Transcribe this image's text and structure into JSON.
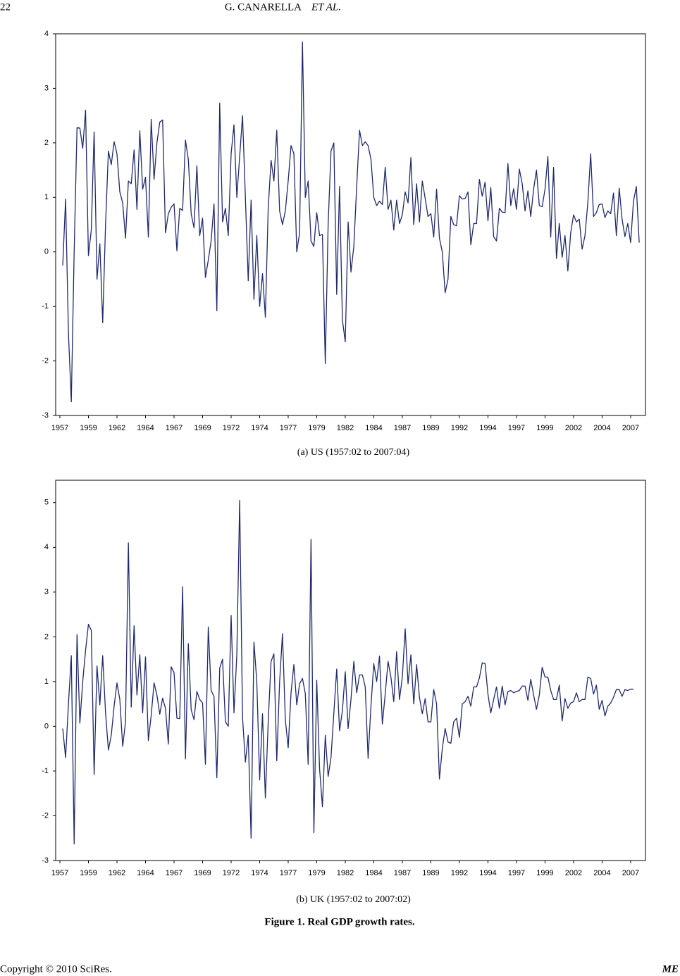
{
  "header": {
    "page_number": "22",
    "authors": "G. CANARELLA",
    "etal": "ET AL."
  },
  "chart_data": [
    {
      "type": "line",
      "caption": "(a) US (1957:02 to 2007:04)",
      "color": "#1f2a6b",
      "xlim": [
        1956.63,
        2008.3
      ],
      "ylim": [
        -3,
        4
      ],
      "yticks": [
        -3,
        -2,
        -1,
        0,
        1,
        2,
        3,
        4
      ],
      "xticks": [
        {
          "value": 1957,
          "label": "1957"
        },
        {
          "value": 1959.5,
          "label": "1959"
        },
        {
          "value": 1962,
          "label": "1962"
        },
        {
          "value": 1964.5,
          "label": "1964"
        },
        {
          "value": 1967,
          "label": "1967"
        },
        {
          "value": 1969.5,
          "label": "1969"
        },
        {
          "value": 1972,
          "label": "1972"
        },
        {
          "value": 1974.5,
          "label": "1974"
        },
        {
          "value": 1977,
          "label": "1977"
        },
        {
          "value": 1979.5,
          "label": "1979"
        },
        {
          "value": 1982,
          "label": "1982"
        },
        {
          "value": 1984.5,
          "label": "1984"
        },
        {
          "value": 1987,
          "label": "1987"
        },
        {
          "value": 1989.5,
          "label": "1989"
        },
        {
          "value": 1992,
          "label": "1992"
        },
        {
          "value": 1994.5,
          "label": "1994"
        },
        {
          "value": 1997,
          "label": "1997"
        },
        {
          "value": 1999.5,
          "label": "1999"
        },
        {
          "value": 2002,
          "label": "2002"
        },
        {
          "value": 2004.5,
          "label": "2004"
        },
        {
          "value": 2007,
          "label": "2007"
        }
      ],
      "x": [
        1957.25,
        1957.5,
        1957.75,
        1958,
        1958.25,
        1958.5,
        1958.75,
        1959,
        1959.25,
        1959.5,
        1959.75,
        1960,
        1960.25,
        1960.5,
        1960.75,
        1961,
        1961.25,
        1961.5,
        1961.75,
        1962,
        1962.25,
        1962.5,
        1962.75,
        1963,
        1963.25,
        1963.5,
        1963.75,
        1964,
        1964.25,
        1964.5,
        1964.75,
        1965,
        1965.25,
        1965.5,
        1965.75,
        1966,
        1966.25,
        1966.5,
        1966.75,
        1967,
        1967.25,
        1967.5,
        1967.75,
        1968,
        1968.25,
        1968.5,
        1968.75,
        1969,
        1969.25,
        1969.5,
        1969.75,
        1970,
        1970.25,
        1970.5,
        1970.75,
        1971,
        1971.25,
        1971.5,
        1971.75,
        1972,
        1972.25,
        1972.5,
        1972.75,
        1973,
        1973.25,
        1973.5,
        1973.75,
        1974,
        1974.25,
        1974.5,
        1974.75,
        1975,
        1975.25,
        1975.5,
        1975.75,
        1976,
        1976.25,
        1976.5,
        1976.75,
        1977,
        1977.25,
        1977.5,
        1977.75,
        1978,
        1978.25,
        1978.5,
        1978.75,
        1979,
        1979.25,
        1979.5,
        1979.75,
        1980,
        1980.25,
        1980.5,
        1980.75,
        1981,
        1981.25,
        1981.5,
        1981.75,
        1982,
        1982.25,
        1982.5,
        1982.75,
        1983,
        1983.25,
        1983.5,
        1983.75,
        1984,
        1984.25,
        1984.5,
        1984.75,
        1985,
        1985.25,
        1985.5,
        1985.75,
        1986,
        1986.25,
        1986.5,
        1986.75,
        1987,
        1987.25,
        1987.5,
        1987.75,
        1988,
        1988.25,
        1988.5,
        1988.75,
        1989,
        1989.25,
        1989.5,
        1989.75,
        1990,
        1990.25,
        1990.5,
        1990.75,
        1991,
        1991.25,
        1991.5,
        1991.75,
        1992,
        1992.25,
        1992.5,
        1992.75,
        1993,
        1993.25,
        1993.5,
        1993.75,
        1994,
        1994.25,
        1994.5,
        1994.75,
        1995,
        1995.25,
        1995.5,
        1995.75,
        1996,
        1996.25,
        1996.5,
        1996.75,
        1997,
        1997.25,
        1997.5,
        1997.75,
        1998,
        1998.25,
        1998.5,
        1998.75,
        1999,
        1999.25,
        1999.5,
        1999.75,
        2000,
        2000.25,
        2000.5,
        2000.75,
        2001,
        2001.25,
        2001.5,
        2001.75,
        2002,
        2002.25,
        2002.5,
        2002.75,
        2003,
        2003.25,
        2003.5,
        2003.75,
        2004,
        2004.25,
        2004.5,
        2004.75,
        2005,
        2005.25,
        2005.5,
        2005.75,
        2006,
        2006.25,
        2006.5,
        2006.75,
        2007,
        2007.25,
        2007.5,
        2007.75
      ],
      "values": [
        -0.25,
        0.97,
        -1.5,
        -2.75,
        0.0,
        2.28,
        2.27,
        1.9,
        2.6,
        -0.07,
        0.4,
        2.2,
        -0.5,
        0.15,
        -1.3,
        0.5,
        1.85,
        1.6,
        2.02,
        1.8,
        1.1,
        0.9,
        0.25,
        1.3,
        1.25,
        1.87,
        0.78,
        2.22,
        1.15,
        1.37,
        0.27,
        2.43,
        1.33,
        2.0,
        2.38,
        2.42,
        0.35,
        0.7,
        0.82,
        0.88,
        0.02,
        0.8,
        0.76,
        2.05,
        1.7,
        0.7,
        0.44,
        1.58,
        0.3,
        0.62,
        -0.47,
        -0.15,
        0.2,
        0.88,
        -1.08,
        2.73,
        0.55,
        0.8,
        0.3,
        1.8,
        2.33,
        1.0,
        1.75,
        2.5,
        1.0,
        -0.53,
        0.95,
        -0.87,
        0.3,
        -1.0,
        -0.4,
        -1.2,
        0.8,
        1.68,
        1.3,
        2.23,
        0.75,
        0.5,
        0.75,
        1.3,
        1.95,
        1.8,
        0.0,
        0.35,
        3.85,
        1.0,
        1.3,
        0.2,
        0.1,
        0.72,
        0.3,
        0.32,
        -2.05,
        0.5,
        1.85,
        2.0,
        -0.78,
        1.2,
        -1.25,
        -1.65,
        0.55,
        -0.37,
        0.1,
        1.2,
        2.23,
        1.95,
        2.02,
        1.95,
        1.7,
        1.0,
        0.85,
        0.93,
        0.87,
        1.55,
        0.78,
        0.95,
        0.4,
        0.95,
        0.52,
        0.68,
        1.1,
        0.9,
        1.73,
        0.5,
        1.25,
        0.55,
        1.3,
        0.98,
        0.65,
        0.7,
        0.27,
        1.15,
        0.25,
        0.0,
        -0.75,
        -0.5,
        0.65,
        0.5,
        0.48,
        1.03,
        0.97,
        0.98,
        1.1,
        0.13,
        0.52,
        0.52,
        1.33,
        1.02,
        1.28,
        0.57,
        1.18,
        0.28,
        0.2,
        0.8,
        0.73,
        0.72,
        1.62,
        0.85,
        1.16,
        0.78,
        1.52,
        1.25,
        0.75,
        1.12,
        0.65,
        1.15,
        1.5,
        0.85,
        0.83,
        1.15,
        1.75,
        0.27,
        1.55,
        -0.12,
        0.52,
        -0.1,
        0.3,
        -0.35,
        0.35,
        0.68,
        0.55,
        0.6,
        0.05,
        0.3,
        0.9,
        1.8,
        0.65,
        0.72,
        0.87,
        0.88,
        0.63,
        0.75,
        0.7,
        1.08,
        0.3,
        1.17,
        0.6,
        0.28,
        0.52,
        0.17,
        0.93,
        1.2,
        0.17
      ]
    },
    {
      "type": "line",
      "caption": "(b) UK (1957:02 to 2007:02)",
      "color": "#1f2a6b",
      "xlim": [
        1956.63,
        2008.3
      ],
      "ylim": [
        -3,
        5.5
      ],
      "yticks": [
        -3,
        -2,
        -1,
        0,
        1,
        2,
        3,
        4,
        5
      ],
      "xticks": [
        {
          "value": 1957,
          "label": "1957"
        },
        {
          "value": 1959.5,
          "label": "1959"
        },
        {
          "value": 1962,
          "label": "1962"
        },
        {
          "value": 1964.5,
          "label": "1964"
        },
        {
          "value": 1967,
          "label": "1967"
        },
        {
          "value": 1969.5,
          "label": "1969"
        },
        {
          "value": 1972,
          "label": "1972"
        },
        {
          "value": 1974.5,
          "label": "1974"
        },
        {
          "value": 1977,
          "label": "1977"
        },
        {
          "value": 1979.5,
          "label": "1979"
        },
        {
          "value": 1982,
          "label": "1982"
        },
        {
          "value": 1984.5,
          "label": "1984"
        },
        {
          "value": 1987,
          "label": "1987"
        },
        {
          "value": 1989.5,
          "label": "1989"
        },
        {
          "value": 1992,
          "label": "1992"
        },
        {
          "value": 1994.5,
          "label": "1994"
        },
        {
          "value": 1997,
          "label": "1997"
        },
        {
          "value": 1999.5,
          "label": "1999"
        },
        {
          "value": 2002,
          "label": "2002"
        },
        {
          "value": 2004.5,
          "label": "2004"
        },
        {
          "value": 2007,
          "label": "2007"
        }
      ],
      "x": [
        1957.25,
        1957.5,
        1957.75,
        1958,
        1958.25,
        1958.5,
        1958.75,
        1959,
        1959.25,
        1959.5,
        1959.75,
        1960,
        1960.25,
        1960.5,
        1960.75,
        1961,
        1961.25,
        1961.5,
        1961.75,
        1962,
        1962.25,
        1962.5,
        1962.75,
        1963,
        1963.25,
        1963.5,
        1963.75,
        1964,
        1964.25,
        1964.5,
        1964.75,
        1965,
        1965.25,
        1965.5,
        1965.75,
        1966,
        1966.25,
        1966.5,
        1966.75,
        1967,
        1967.25,
        1967.5,
        1967.75,
        1968,
        1968.25,
        1968.5,
        1968.75,
        1969,
        1969.25,
        1969.5,
        1969.75,
        1970,
        1970.25,
        1970.5,
        1970.75,
        1971,
        1971.25,
        1971.5,
        1971.75,
        1972,
        1972.25,
        1972.5,
        1972.75,
        1973,
        1973.25,
        1973.5,
        1973.75,
        1974,
        1974.25,
        1974.5,
        1974.75,
        1975,
        1975.25,
        1975.5,
        1975.75,
        1976,
        1976.25,
        1976.5,
        1976.75,
        1977,
        1977.25,
        1977.5,
        1977.75,
        1978,
        1978.25,
        1978.5,
        1978.75,
        1979,
        1979.25,
        1979.5,
        1979.75,
        1980,
        1980.25,
        1980.5,
        1980.75,
        1981,
        1981.25,
        1981.5,
        1981.75,
        1982,
        1982.25,
        1982.5,
        1982.75,
        1983,
        1983.25,
        1983.5,
        1983.75,
        1984,
        1984.25,
        1984.5,
        1984.75,
        1985,
        1985.25,
        1985.5,
        1985.75,
        1986,
        1986.25,
        1986.5,
        1986.75,
        1987,
        1987.25,
        1987.5,
        1987.75,
        1988,
        1988.25,
        1988.5,
        1988.75,
        1989,
        1989.25,
        1989.5,
        1989.75,
        1990,
        1990.25,
        1990.5,
        1990.75,
        1991,
        1991.25,
        1991.5,
        1991.75,
        1992,
        1992.25,
        1992.5,
        1992.75,
        1993,
        1993.25,
        1993.5,
        1993.75,
        1994,
        1994.25,
        1994.5,
        1994.75,
        1995,
        1995.25,
        1995.5,
        1995.75,
        1996,
        1996.25,
        1996.5,
        1996.75,
        1997,
        1997.25,
        1997.5,
        1997.75,
        1998,
        1998.25,
        1998.5,
        1998.75,
        1999,
        1999.25,
        1999.5,
        1999.75,
        2000,
        2000.25,
        2000.5,
        2000.75,
        2001,
        2001.25,
        2001.5,
        2001.75,
        2002,
        2002.25,
        2002.5,
        2002.75,
        2003,
        2003.25,
        2003.5,
        2003.75,
        2004,
        2004.25,
        2004.5,
        2004.75,
        2005,
        2005.25,
        2005.5,
        2005.75,
        2006,
        2006.25,
        2006.5,
        2006.75,
        2007,
        2007.25
      ],
      "values": [
        -0.05,
        -0.7,
        0.5,
        1.58,
        -2.63,
        2.05,
        0.07,
        1.0,
        1.7,
        2.28,
        2.15,
        -1.08,
        1.35,
        0.48,
        1.58,
        0.3,
        -0.53,
        -0.2,
        0.45,
        0.97,
        0.6,
        -0.45,
        0.1,
        4.1,
        0.43,
        2.25,
        0.7,
        1.6,
        0.3,
        1.55,
        -0.32,
        0.25,
        0.97,
        0.7,
        0.27,
        0.63,
        0.4,
        -0.4,
        1.33,
        1.2,
        0.18,
        0.17,
        3.12,
        -0.73,
        1.85,
        0.37,
        0.15,
        0.78,
        0.6,
        0.52,
        -0.85,
        2.22,
        0.8,
        0.67,
        -1.15,
        1.3,
        1.5,
        0.1,
        0.0,
        2.48,
        0.3,
        1.6,
        5.05,
        0.2,
        -0.8,
        -0.2,
        -2.5,
        1.88,
        1.0,
        -1.2,
        0.28,
        -1.6,
        0.1,
        1.45,
        1.62,
        -0.77,
        1.0,
        2.07,
        0.15,
        -0.48,
        0.75,
        1.38,
        0.48,
        0.95,
        1.07,
        0.73,
        -0.85,
        4.18,
        -2.38,
        1.03,
        -0.95,
        -1.8,
        -0.2,
        -1.12,
        -0.7,
        0.3,
        1.28,
        -0.1,
        0.35,
        1.22,
        -0.05,
        0.6,
        1.45,
        0.75,
        1.15,
        1.15,
        0.88,
        -0.72,
        0.45,
        1.4,
        1.0,
        1.57,
        0.05,
        0.72,
        1.45,
        1.1,
        0.55,
        1.67,
        0.6,
        1.1,
        2.18,
        0.95,
        1.6,
        0.5,
        1.38,
        0.65,
        0.28,
        0.62,
        0.1,
        0.1,
        0.82,
        0.5,
        -1.18,
        -0.5,
        -0.05,
        -0.35,
        -0.38,
        0.1,
        0.18,
        -0.25,
        0.5,
        0.55,
        0.67,
        0.45,
        0.88,
        0.88,
        1.08,
        1.42,
        1.4,
        0.72,
        0.3,
        0.6,
        0.88,
        0.4,
        0.9,
        0.48,
        0.78,
        0.8,
        0.75,
        0.78,
        0.8,
        0.9,
        0.9,
        0.58,
        1.05,
        0.7,
        0.38,
        0.7,
        1.32,
        1.1,
        1.1,
        0.8,
        0.6,
        0.6,
        0.92,
        0.12,
        0.62,
        0.4,
        0.52,
        0.55,
        0.75,
        0.55,
        0.6,
        0.6,
        1.1,
        1.07,
        0.72,
        0.92,
        0.38,
        0.58,
        0.23,
        0.45,
        0.52,
        0.65,
        0.82,
        0.82,
        0.67,
        0.82,
        0.8,
        0.83,
        0.83
      ]
    }
  ],
  "figure_caption": "Figure 1. Real GDP growth rates.",
  "footer": {
    "copyright": "Copyright © 2010 SciRes.",
    "journal": "ME"
  }
}
